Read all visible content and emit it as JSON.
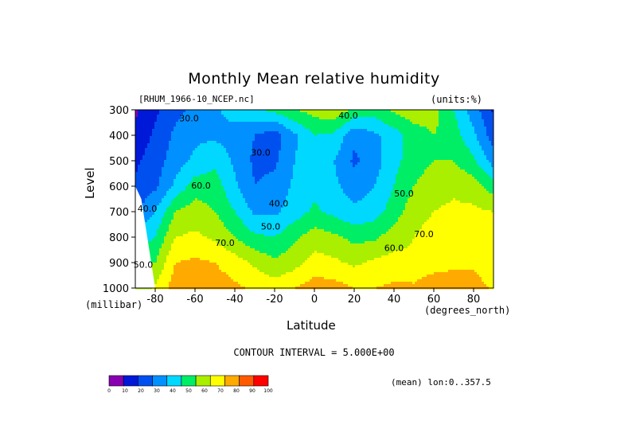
{
  "header": {
    "title": "Monthly Mean relative humidity",
    "file": "[RHUM_1966-10_NCEP.nc]",
    "units": "(units:%)"
  },
  "footer": {
    "contour_interval": "CONTOUR INTERVAL = 5.000E+00",
    "mean_note": "(mean) lon:0..357.5"
  },
  "chart_data": {
    "type": "heatmap",
    "title": "Monthly Mean relative humidity",
    "xlabel": "Latitude",
    "x_unit": "(degrees_north)",
    "ylabel": "Level",
    "y_unit": "(millibar)",
    "xlim": [
      -90,
      90
    ],
    "ylim": [
      1000,
      300
    ],
    "x_ticks": [
      -80,
      -60,
      -40,
      -20,
      0,
      20,
      40,
      60,
      80
    ],
    "x_tick_labels": [
      "-80",
      "-60",
      "-40",
      "-20",
      "0",
      "20",
      "40",
      "60",
      "80"
    ],
    "y_ticks": [
      300,
      400,
      500,
      600,
      700,
      800,
      900,
      1000
    ],
    "y_tick_labels": [
      "300",
      "400",
      "500",
      "600",
      "700",
      "800",
      "900",
      "1000"
    ],
    "x": [
      -90,
      -80,
      -70,
      -60,
      -50,
      -40,
      -30,
      -20,
      -10,
      0,
      10,
      20,
      30,
      40,
      50,
      60,
      70,
      80,
      90
    ],
    "y": [
      300,
      400,
      500,
      600,
      700,
      800,
      900,
      1000
    ],
    "z": [
      [
        8,
        18,
        27,
        33,
        38,
        45,
        48,
        53,
        60,
        64,
        68,
        58,
        55,
        62,
        66,
        64,
        50,
        35,
        18
      ],
      [
        13,
        22,
        32,
        38,
        38,
        35,
        30,
        25,
        38,
        50,
        48,
        32,
        38,
        45,
        55,
        60,
        55,
        42,
        25
      ],
      [
        18,
        25,
        35,
        42,
        48,
        38,
        28,
        28,
        40,
        45,
        40,
        28,
        35,
        47,
        55,
        60,
        60,
        52,
        35
      ],
      [
        22,
        28,
        42,
        55,
        55,
        42,
        30,
        33,
        42,
        47,
        42,
        35,
        40,
        50,
        60,
        66,
        68,
        65,
        55
      ],
      [
        28,
        40,
        60,
        65,
        60,
        50,
        38,
        38,
        45,
        52,
        47,
        42,
        45,
        55,
        66,
        70,
        72,
        72,
        70
      ],
      [
        45,
        50,
        70,
        72,
        68,
        60,
        52,
        50,
        58,
        65,
        62,
        57,
        58,
        65,
        70,
        74,
        72,
        75,
        72
      ],
      [
        55,
        60,
        80,
        82,
        80,
        75,
        68,
        62,
        66,
        74,
        72,
        68,
        72,
        74,
        72,
        74,
        76,
        78,
        72
      ],
      [
        60,
        72,
        85,
        88,
        85,
        82,
        78,
        75,
        80,
        85,
        84,
        80,
        80,
        82,
        82,
        88,
        90,
        85,
        78
      ]
    ],
    "contour_interval": 5,
    "contour_labels": [
      {
        "text": "30.0",
        "lat": -63,
        "p": 345
      },
      {
        "text": "30.0",
        "lat": -27,
        "p": 480
      },
      {
        "text": "40.0",
        "lat": 17,
        "p": 335
      },
      {
        "text": "40.0",
        "lat": -84,
        "p": 700
      },
      {
        "text": "60.0",
        "lat": -57,
        "p": 610
      },
      {
        "text": "40.0",
        "lat": -18,
        "p": 680
      },
      {
        "text": "50.0",
        "lat": -22,
        "p": 770
      },
      {
        "text": "50.0",
        "lat": 45,
        "p": 640
      },
      {
        "text": "70.0",
        "lat": -45,
        "p": 835
      },
      {
        "text": "70.0",
        "lat": 55,
        "p": 800
      },
      {
        "text": "60.0",
        "lat": 40,
        "p": 855
      },
      {
        "text": "50.0",
        "lat": -86,
        "p": 920
      }
    ],
    "colorbar": {
      "levels": [
        0,
        10,
        20,
        30,
        40,
        50,
        60,
        70,
        80,
        90,
        100
      ],
      "labels": [
        "0",
        "10",
        "20",
        "30",
        "40",
        "50",
        "60",
        "70",
        "80",
        "90",
        "100"
      ],
      "colors": [
        "#8800b0",
        "#0018d8",
        "#0050f0",
        "#0090ff",
        "#00d8ff",
        "#00ee66",
        "#aaee00",
        "#ffff00",
        "#ffaa00",
        "#ff5a00",
        "#ff0000"
      ]
    }
  }
}
